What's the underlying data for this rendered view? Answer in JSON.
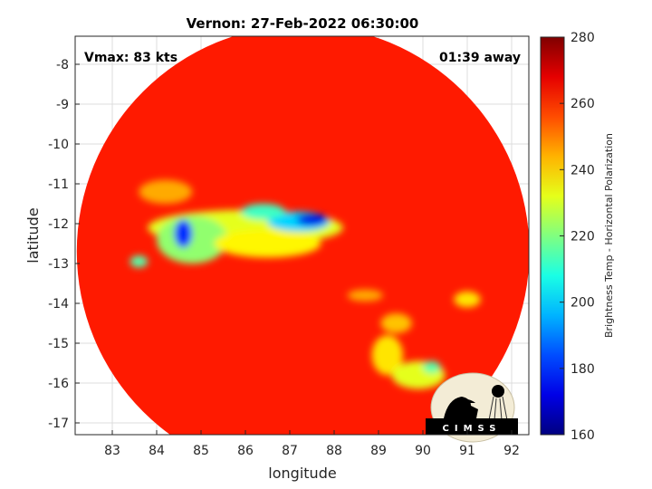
{
  "chart_data": {
    "type": "heatmap",
    "title": "Vernon: 27-Feb-2022 06:30:00",
    "xlabel": "longitude",
    "ylabel": "latitude",
    "xlim": [
      82.17,
      92.33
    ],
    "ylim": [
      -17.3,
      -7.3
    ],
    "xticks": [
      "83",
      "84",
      "85",
      "86",
      "87",
      "88",
      "89",
      "90",
      "91",
      "92"
    ],
    "yticks": [
      "-8",
      "-9",
      "-10",
      "-11",
      "-12",
      "-13",
      "-14",
      "-15",
      "-16",
      "-17"
    ],
    "grid": true,
    "colormap": "jet",
    "colorbar": {
      "label": "Brightness Temp - Horizontal Polarization",
      "range": [
        160,
        280
      ],
      "ticks": [
        "160",
        "180",
        "200",
        "220",
        "240",
        "260",
        "280"
      ],
      "placement": "right"
    },
    "swath": {
      "center_lon": 87.3,
      "center_lat": -12.7,
      "radius_deg": 5.1,
      "background_tb": 262
    },
    "features": [
      {
        "lon": 86.0,
        "lat": -12.1,
        "rlon": 2.2,
        "rlat": 0.45,
        "tb": 232
      },
      {
        "lon": 84.8,
        "lat": -12.4,
        "rlon": 0.8,
        "rlat": 0.6,
        "tb": 222
      },
      {
        "lon": 86.5,
        "lat": -12.5,
        "rlon": 1.2,
        "rlat": 0.35,
        "tb": 236
      },
      {
        "lon": 84.6,
        "lat": -12.25,
        "rlon": 0.2,
        "rlat": 0.35,
        "tb": 180
      },
      {
        "lon": 87.2,
        "lat": -11.95,
        "rlon": 0.7,
        "rlat": 0.25,
        "tb": 200
      },
      {
        "lon": 87.5,
        "lat": -11.9,
        "rlon": 0.35,
        "rlat": 0.15,
        "tb": 172
      },
      {
        "lon": 86.4,
        "lat": -11.7,
        "rlon": 0.5,
        "rlat": 0.2,
        "tb": 212
      },
      {
        "lon": 83.6,
        "lat": -12.95,
        "rlon": 0.2,
        "rlat": 0.15,
        "tb": 215
      },
      {
        "lon": 89.2,
        "lat": -15.3,
        "rlon": 0.35,
        "rlat": 0.5,
        "tb": 238
      },
      {
        "lon": 89.9,
        "lat": -15.8,
        "rlon": 0.6,
        "rlat": 0.35,
        "tb": 232
      },
      {
        "lon": 90.2,
        "lat": -15.6,
        "rlon": 0.2,
        "rlat": 0.15,
        "tb": 215
      },
      {
        "lon": 89.4,
        "lat": -14.5,
        "rlon": 0.35,
        "rlat": 0.25,
        "tb": 242
      },
      {
        "lon": 91.0,
        "lat": -13.9,
        "rlon": 0.3,
        "rlat": 0.2,
        "tb": 238
      },
      {
        "lon": 88.7,
        "lat": -13.8,
        "rlon": 0.4,
        "rlat": 0.15,
        "tb": 245
      },
      {
        "lon": 84.2,
        "lat": -11.2,
        "rlon": 0.6,
        "rlat": 0.3,
        "tb": 245
      }
    ],
    "annotations": {
      "vmax": "Vmax: 83 kts",
      "time_away": "01:39 away"
    }
  },
  "logo": {
    "text": "CIMSS"
  }
}
